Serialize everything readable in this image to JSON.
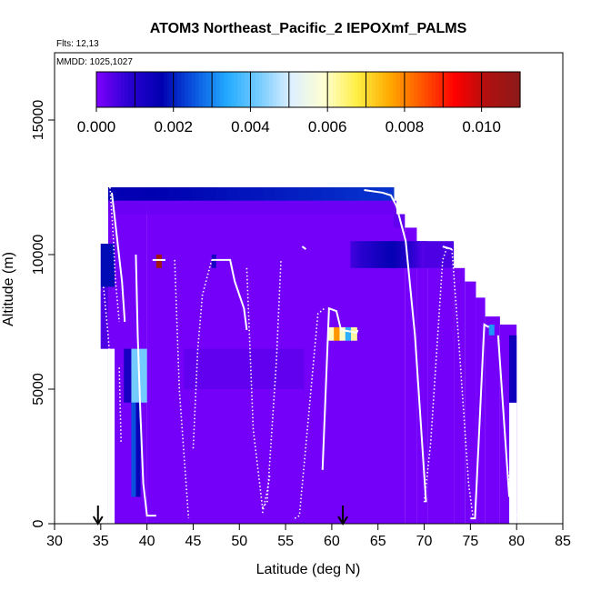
{
  "chart_data": {
    "type": "heatmap",
    "title": "ATOM3 Northeast_Pacific_2 IEPOXmf_PALMS",
    "flights_label": "Flts: 12,13",
    "dates_label": "MMDD: 1025,1027",
    "xlabel": "Latitude (deg N)",
    "ylabel": "Altitude (m)",
    "xlim": [
      30,
      85
    ],
    "ylim": [
      0,
      17500
    ],
    "x_ticks": [
      30,
      35,
      40,
      45,
      50,
      55,
      60,
      65,
      70,
      75,
      80,
      85
    ],
    "y_ticks": [
      0,
      5000,
      10000,
      15000
    ],
    "colorbar": {
      "range": [
        0,
        0.011
      ],
      "ticks": [
        "0.000",
        "0.002",
        "0.004",
        "0.006",
        "0.008",
        "0.010"
      ],
      "tick_values": [
        0,
        0.002,
        0.004,
        0.006,
        0.008,
        0.01
      ],
      "band_edges": [
        0,
        0.001,
        0.002,
        0.003,
        0.004,
        0.005,
        0.006,
        0.007,
        0.008,
        0.009,
        0.01,
        0.011
      ],
      "colors": [
        "#7f00ff",
        "#2a00d0",
        "#0000b0",
        "#0a55e0",
        "#22aaff",
        "#77ccff",
        "#dff0ff",
        "#ffffd0",
        "#ffee44",
        "#ffaa00",
        "#ff5500",
        "#ff0000",
        "#b01010",
        "#8b1a1a"
      ]
    },
    "background_value": 0.0001,
    "cells": [
      {
        "lat": [
          35.8,
          66.7
        ],
        "alt": [
          12000,
          12500
        ],
        "val": [
          0.0016,
          0.0022
        ]
      },
      {
        "lat": [
          35.8,
          40.0
        ],
        "alt": [
          11500,
          12000
        ],
        "val": 0.0002
      },
      {
        "lat": [
          40.0,
          67.0
        ],
        "alt": [
          11500,
          12000
        ],
        "val": 0.0002
      },
      {
        "lat": [
          35.0,
          36.5
        ],
        "alt": [
          8800,
          10400
        ],
        "val": 0.0018
      },
      {
        "lat": [
          35.0,
          35.8
        ],
        "alt": [
          6500,
          8800
        ],
        "val": 0.0005
      },
      {
        "lat": [
          62.0,
          66.5
        ],
        "alt": [
          9500,
          10500
        ],
        "val": [
          0.0006,
          0.0016
        ]
      },
      {
        "lat": [
          66.5,
          70.0
        ],
        "alt": [
          9500,
          10500
        ],
        "val": [
          0.0016,
          0.0004
        ]
      },
      {
        "lat": [
          70.0,
          73.2
        ],
        "alt": [
          9500,
          10500
        ],
        "val": 0.0005
      },
      {
        "lat": [
          66.7,
          67.9
        ],
        "alt": [
          11000,
          11500
        ],
        "val": 0.0003
      },
      {
        "lat": [
          44.0,
          57.0
        ],
        "alt": [
          5000,
          6500
        ],
        "val": 0.0003
      },
      {
        "lat": [
          38.3,
          40.0
        ],
        "alt": [
          4500,
          6500
        ],
        "val": 0.0042
      },
      {
        "lat": [
          38.3,
          38.8
        ],
        "alt": [
          1000,
          4500
        ],
        "val": 0.0025
      },
      {
        "lat": [
          38.8,
          39.3
        ],
        "alt": [
          1000,
          4500
        ],
        "val": 0.0015
      },
      {
        "lat": [
          37.5,
          38.3
        ],
        "alt": [
          4500,
          6500
        ],
        "val": 0.0012
      },
      {
        "lat": [
          59.6,
          62.7
        ],
        "alt": [
          6800,
          7300
        ],
        "val": [
          0.006,
          0.0078,
          0.006,
          0.0035,
          0.0062
        ]
      },
      {
        "lat": [
          79.2,
          80.0
        ],
        "alt": [
          4500,
          7000
        ],
        "val": 0.0014
      },
      {
        "lat": [
          77.0,
          77.6
        ],
        "alt": [
          7000,
          7400
        ],
        "val": 0.0032
      },
      {
        "lat": [
          47.0,
          47.5
        ],
        "alt": [
          9500,
          10000
        ],
        "val": 0.0012
      },
      {
        "lat": [
          41.0,
          41.6
        ],
        "alt": [
          9500,
          10000
        ],
        "val": 0.0105
      }
    ],
    "flight_tracks": [
      {
        "lat": [
          36.2,
          36.8,
          37.3,
          37.6
        ],
        "alt": [
          12300,
          10500,
          9000,
          7500
        ]
      },
      {
        "lat": [
          38.8,
          39.0,
          39.3,
          39.6,
          40.0,
          40.6,
          41.0
        ],
        "alt": [
          10000,
          7000,
          4000,
          1500,
          300,
          300,
          300
        ]
      },
      {
        "lat": [
          40.6,
          42.0
        ],
        "alt": [
          9800,
          9800
        ]
      },
      {
        "lat": [
          47.0,
          49.0,
          49.5,
          50.5,
          50.8
        ],
        "alt": [
          9800,
          9800,
          9000,
          8000,
          7200
        ]
      },
      {
        "lat": [
          56.8,
          57.2
        ],
        "alt": [
          10300,
          10200
        ]
      },
      {
        "lat": [
          59.0,
          59.7,
          60.5,
          61.0,
          62.7,
          62.8
        ],
        "alt": [
          2000,
          8000,
          7900,
          7200,
          7100,
          7200
        ]
      },
      {
        "lat": [
          63.5,
          65.5,
          66.4,
          67.0,
          68.0,
          69.0,
          70.2
        ],
        "alt": [
          12400,
          12300,
          12200,
          11800,
          10500,
          7000,
          800
        ]
      },
      {
        "lat": [
          72.0,
          73.0
        ],
        "alt": [
          10300,
          10200
        ]
      },
      {
        "lat": [
          75.0,
          75.5,
          76.5,
          77.0
        ],
        "alt": [
          200,
          200,
          7400,
          7300
        ]
      },
      {
        "lat": [
          78.0,
          78.5,
          79.2
        ],
        "alt": [
          7000,
          4500,
          1000
        ]
      }
    ],
    "dotted_tracks": [
      {
        "lat": [
          36.0,
          36.3,
          36.6,
          37.0
        ],
        "alt": [
          12500,
          11000,
          9000,
          7500
        ]
      },
      {
        "lat": [
          43.0,
          43.5,
          44.5
        ],
        "alt": [
          9800,
          5000,
          200
        ]
      },
      {
        "lat": [
          45.0,
          45.5,
          46.0,
          47.0
        ],
        "alt": [
          2800,
          6500,
          8500,
          9800
        ]
      },
      {
        "lat": [
          50.8,
          51.5,
          52.5,
          53.0,
          54.0,
          54.5
        ],
        "alt": [
          9500,
          3500,
          600,
          800,
          6000,
          9800
        ]
      },
      {
        "lat": [
          52.5,
          53.0,
          53.3
        ],
        "alt": [
          400,
          1200,
          1800
        ]
      },
      {
        "lat": [
          56.0,
          56.5,
          58.5,
          59.2
        ],
        "alt": [
          200,
          300,
          7800,
          8000
        ]
      },
      {
        "lat": [
          70.0,
          70.7,
          72.0,
          72.5
        ],
        "alt": [
          800,
          3000,
          9800,
          10300
        ]
      },
      {
        "lat": [
          73.0,
          73.8,
          74.8,
          75.3
        ],
        "alt": [
          10200,
          6500,
          1500,
          200
        ]
      },
      {
        "lat": [
          78.5,
          79.0,
          79.8,
          80.0
        ],
        "alt": [
          4500,
          2000,
          600,
          300
        ]
      },
      {
        "lat": [
          35.3,
          35.8,
          36.2
        ],
        "alt": [
          8800,
          7000,
          5000
        ]
      },
      {
        "lat": [
          37.0,
          37.2
        ],
        "alt": [
          5800,
          3000
        ]
      }
    ],
    "markers": [
      {
        "label": "arrow-down",
        "lat": 34.7
      },
      {
        "label": "arrow-down",
        "lat": 61.2
      }
    ]
  }
}
